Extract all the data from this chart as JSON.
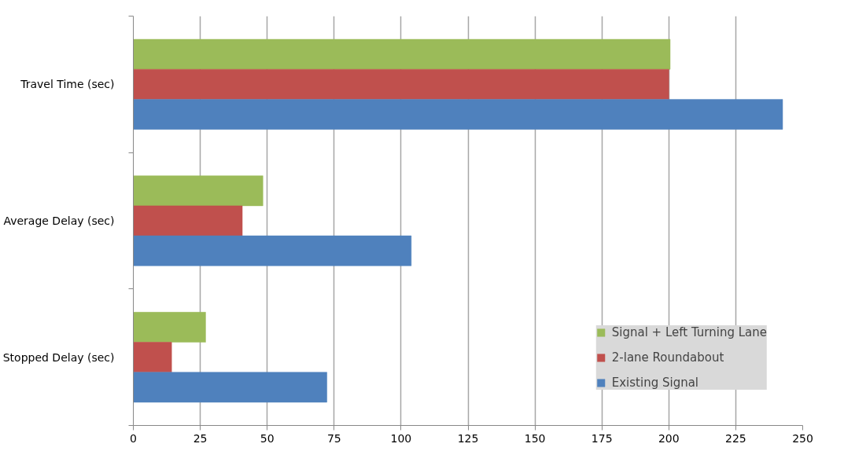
{
  "chart_data": {
    "type": "bar",
    "orientation": "horizontal",
    "categories": [
      "Travel Time (sec)",
      "Average Delay (sec)",
      "Stopped Delay (sec)"
    ],
    "series": [
      {
        "name": "Signal + Left Turning Lane",
        "color": "#9bbb59",
        "values": [
          200.5,
          48.4,
          27.0
        ]
      },
      {
        "name": "2-lane Roundabout",
        "color": "#c0504d",
        "values": [
          200.0,
          40.7,
          14.3
        ]
      },
      {
        "name": "Existing Signal",
        "color": "#4f81bd",
        "values": [
          242.5,
          103.8,
          72.3
        ]
      }
    ],
    "xlim": [
      0,
      250
    ],
    "xticks": [
      0,
      25,
      50,
      75,
      100,
      125,
      150,
      175,
      200,
      225,
      250
    ],
    "grid": "x",
    "legend": "bottom right"
  }
}
